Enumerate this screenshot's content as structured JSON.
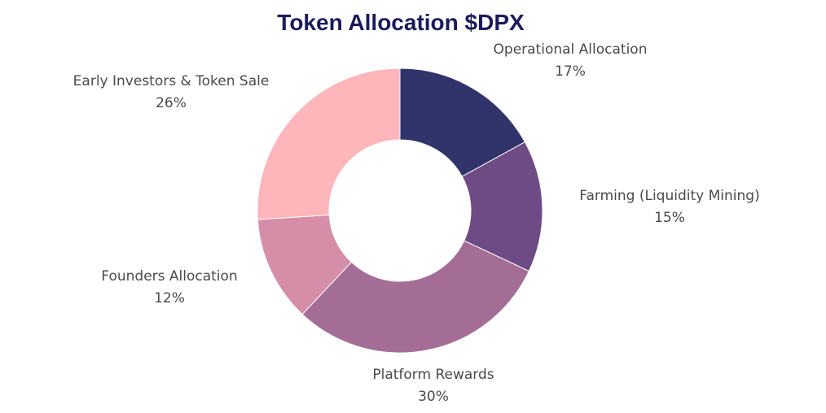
{
  "chart_data": {
    "type": "pie",
    "title": "Token Allocation $DPX",
    "donut": true,
    "slices": [
      {
        "label": "Operational Allocation",
        "value": 17,
        "display": "17%",
        "color": "#31336b"
      },
      {
        "label": "Farming (Liquidity Mining)",
        "value": 15,
        "display": "15%",
        "color": "#6e4b85"
      },
      {
        "label": "Platform Rewards",
        "value": 30,
        "display": "30%",
        "color": "#a46d96"
      },
      {
        "label": "Founders Allocation",
        "value": 12,
        "display": "12%",
        "color": "#d68ea8"
      },
      {
        "label": "Early Investors & Token Sale",
        "value": 26,
        "display": "26%",
        "color": "#feb6bb"
      }
    ],
    "colors": {
      "title": "#1c1a5c",
      "label": "#4a4a4a"
    }
  }
}
